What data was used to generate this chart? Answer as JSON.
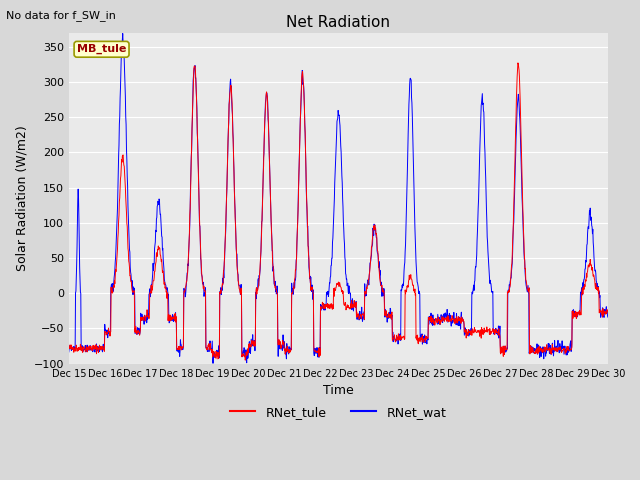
{
  "title": "Net Radiation",
  "subtitle": "No data for f_SW_in",
  "xlabel": "Time",
  "ylabel": "Solar Radiation (W/m2)",
  "ylim": [
    -100,
    370
  ],
  "legend_labels": [
    "RNet_tule",
    "RNet_wat"
  ],
  "legend_colors": [
    "#ff0000",
    "#0000ff"
  ],
  "inset_label": "MB_tule",
  "inset_bg": "#ffffcc",
  "inset_border": "#999900",
  "inset_text_color": "#990000",
  "fig_bg": "#d8d8d8",
  "plot_bg": "#eaeaea",
  "grid_color": "#ffffff",
  "yticks": [
    -100,
    -50,
    0,
    50,
    100,
    150,
    200,
    250,
    300,
    350
  ],
  "xtick_labels": [
    "Dec 15",
    "Dec 16",
    "Dec 17",
    "Dec 18",
    "Dec 19",
    "Dec 20",
    "Dec 21",
    "Dec 22",
    "Dec 23",
    "Dec 24",
    "Dec 25",
    "Dec 26",
    "Dec 27",
    "Dec 28",
    "Dec 29",
    "Dec 30"
  ],
  "n_days": 15,
  "pts_per_day": 96
}
